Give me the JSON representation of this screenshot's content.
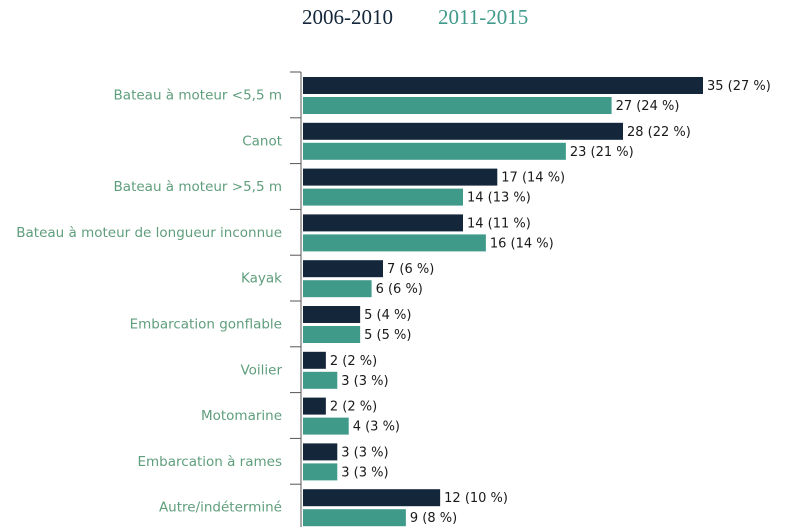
{
  "chart_data": {
    "type": "bar",
    "orientation": "horizontal",
    "categories": [
      "Bateau à moteur <5,5 m",
      "Canot",
      "Bateau à moteur >5,5 m",
      "Bateau à moteur de longueur inconnue",
      "Kayak",
      "Embarcation gonflable",
      "Voilier",
      "Motomarine",
      "Embarcation à rames",
      "Autre/indéterminé"
    ],
    "series": [
      {
        "name": "2006-2010",
        "color": "#14263a",
        "values": [
          35,
          28,
          17,
          14,
          7,
          5,
          2,
          2,
          3,
          12
        ],
        "value_labels": [
          "35 (27 %)",
          "28 (22 %)",
          "17 (14 %)",
          "14 (11 %)",
          "7 (6 %)",
          "5 (4 %)",
          "2 (2 %)",
          "2 (2 %)",
          "3 (3 %)",
          "12 (10 %)"
        ]
      },
      {
        "name": "2011-2015",
        "color": "#3f9a8a",
        "values": [
          27,
          23,
          14,
          16,
          6,
          5,
          3,
          4,
          3,
          9
        ],
        "value_labels": [
          "27 (24 %)",
          "23 (21 %)",
          "14 (13 %)",
          "16 (14 %)",
          "6 (6 %)",
          "5 (5 %)",
          "3 (3 %)",
          "4 (3 %)",
          "3 (3 %)",
          "9 (8 %)"
        ]
      }
    ]
  }
}
